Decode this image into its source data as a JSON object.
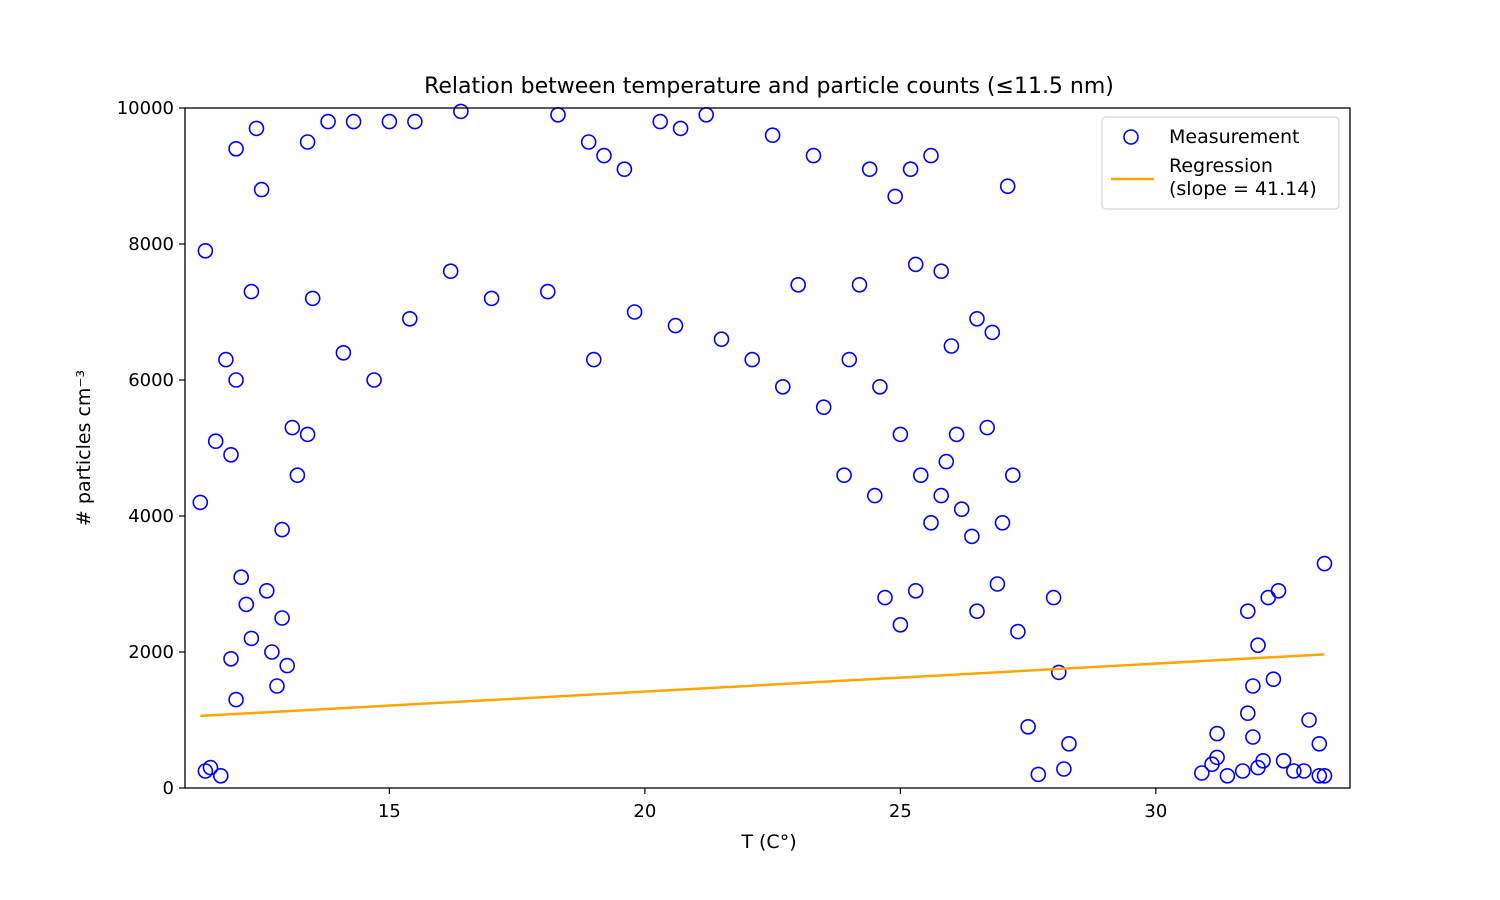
{
  "chart_data": {
    "type": "scatter",
    "title": "Relation between temperature and particle counts (≤11.5 nm)",
    "xlabel": "T (C°)",
    "ylabel": "# particles cm⁻³",
    "xlim": [
      11.0,
      33.8
    ],
    "ylim": [
      0,
      10000
    ],
    "xticks": [
      15,
      20,
      25,
      30
    ],
    "yticks": [
      0,
      2000,
      4000,
      6000,
      8000,
      10000
    ],
    "grid": false,
    "legend_position": "top-right",
    "colors": {
      "measurement": "#0000ff",
      "regression": "#ffa500"
    },
    "series": [
      {
        "name": "Measurement",
        "kind": "scatter",
        "marker": "open-circle",
        "points": [
          [
            11.3,
            4200
          ],
          [
            11.4,
            7900
          ],
          [
            11.6,
            5100
          ],
          [
            11.8,
            6300
          ],
          [
            11.9,
            4900
          ],
          [
            12.0,
            6000
          ],
          [
            12.3,
            7300
          ],
          [
            12.4,
            9700
          ],
          [
            12.0,
            9400
          ],
          [
            12.5,
            8800
          ],
          [
            13.4,
            9500
          ],
          [
            13.5,
            7200
          ],
          [
            13.8,
            9800
          ],
          [
            14.3,
            9800
          ],
          [
            15.0,
            9800
          ],
          [
            15.5,
            9800
          ],
          [
            16.4,
            9950
          ],
          [
            18.3,
            9900
          ],
          [
            18.9,
            9500
          ],
          [
            19.2,
            9300
          ],
          [
            19.6,
            9100
          ],
          [
            20.3,
            9800
          ],
          [
            20.7,
            9700
          ],
          [
            21.2,
            9900
          ],
          [
            22.5,
            9600
          ],
          [
            23.3,
            9300
          ],
          [
            24.4,
            9100
          ],
          [
            25.2,
            9100
          ],
          [
            25.6,
            9300
          ],
          [
            24.9,
            8700
          ],
          [
            23.0,
            7400
          ],
          [
            24.2,
            7400
          ],
          [
            25.3,
            7700
          ],
          [
            25.8,
            7600
          ],
          [
            26.5,
            6900
          ],
          [
            26.8,
            6700
          ],
          [
            27.1,
            8850
          ],
          [
            26.0,
            6500
          ],
          [
            27.2,
            4600
          ],
          [
            26.1,
            5200
          ],
          [
            26.7,
            5300
          ],
          [
            25.9,
            4800
          ],
          [
            26.2,
            4100
          ],
          [
            26.4,
            3700
          ],
          [
            27.0,
            3900
          ],
          [
            26.9,
            3000
          ],
          [
            26.5,
            2600
          ],
          [
            27.3,
            2300
          ],
          [
            28.0,
            2800
          ],
          [
            28.1,
            1700
          ],
          [
            28.3,
            650
          ],
          [
            28.2,
            280
          ],
          [
            27.7,
            200
          ],
          [
            27.5,
            900
          ],
          [
            31.2,
            800
          ],
          [
            31.8,
            2600
          ],
          [
            32.0,
            2100
          ],
          [
            32.2,
            2800
          ],
          [
            32.4,
            2900
          ],
          [
            32.3,
            1600
          ],
          [
            31.9,
            1500
          ],
          [
            31.8,
            1100
          ],
          [
            31.9,
            750
          ],
          [
            32.5,
            400
          ],
          [
            33.0,
            1000
          ],
          [
            33.2,
            650
          ],
          [
            33.3,
            3300
          ],
          [
            33.3,
            180
          ],
          [
            33.2,
            180
          ],
          [
            32.9,
            250
          ],
          [
            32.7,
            250
          ],
          [
            32.0,
            300
          ],
          [
            31.7,
            250
          ],
          [
            31.4,
            180
          ],
          [
            31.2,
            450
          ],
          [
            30.9,
            220
          ],
          [
            31.1,
            350
          ],
          [
            32.1,
            400
          ],
          [
            12.6,
            2900
          ],
          [
            12.2,
            2700
          ],
          [
            12.9,
            3800
          ],
          [
            13.2,
            4600
          ],
          [
            13.1,
            5300
          ],
          [
            13.4,
            5200
          ],
          [
            14.1,
            6400
          ],
          [
            14.7,
            6000
          ],
          [
            15.4,
            6900
          ],
          [
            16.2,
            7600
          ],
          [
            17.0,
            7200
          ],
          [
            18.1,
            7300
          ],
          [
            19.0,
            6300
          ],
          [
            19.8,
            7000
          ],
          [
            20.6,
            6800
          ],
          [
            21.5,
            6600
          ],
          [
            22.1,
            6300
          ],
          [
            22.7,
            5900
          ],
          [
            23.5,
            5600
          ],
          [
            24.0,
            6300
          ],
          [
            24.6,
            5900
          ],
          [
            25.0,
            5200
          ],
          [
            23.9,
            4600
          ],
          [
            24.5,
            4300
          ],
          [
            25.4,
            4600
          ],
          [
            25.8,
            4300
          ],
          [
            25.6,
            3900
          ],
          [
            25.3,
            2900
          ],
          [
            25.0,
            2400
          ],
          [
            24.7,
            2800
          ],
          [
            11.4,
            250
          ],
          [
            11.7,
            180
          ],
          [
            11.5,
            300
          ],
          [
            12.0,
            1300
          ],
          [
            11.9,
            1900
          ],
          [
            12.1,
            3100
          ],
          [
            12.3,
            2200
          ],
          [
            12.7,
            2000
          ],
          [
            12.9,
            2500
          ],
          [
            13.0,
            1800
          ],
          [
            12.8,
            1500
          ]
        ]
      },
      {
        "name": "Regression\n(slope = 41.14)",
        "kind": "line",
        "points": [
          [
            11.3,
            1060
          ],
          [
            33.3,
            1965
          ]
        ]
      }
    ]
  }
}
